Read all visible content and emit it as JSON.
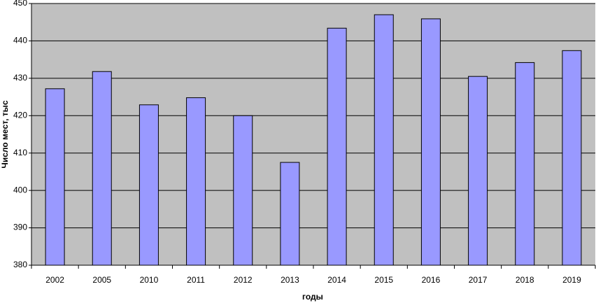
{
  "chart_data": {
    "type": "bar",
    "y_label": "Число мест, тыс",
    "x_label": "годы",
    "categories": [
      "2002",
      "2005",
      "2010",
      "2011",
      "2012",
      "2013",
      "2014",
      "2015",
      "2016",
      "2017",
      "2018",
      "2019"
    ],
    "values": [
      427.2,
      431.8,
      422.9,
      424.8,
      420.0,
      407.5,
      443.4,
      447.0,
      445.9,
      430.5,
      434.2,
      437.4
    ],
    "color": "#9999ff",
    "ylim": [
      380,
      450
    ],
    "yticks": [
      380,
      390,
      400,
      410,
      420,
      430,
      440,
      450
    ],
    "grid": true
  }
}
